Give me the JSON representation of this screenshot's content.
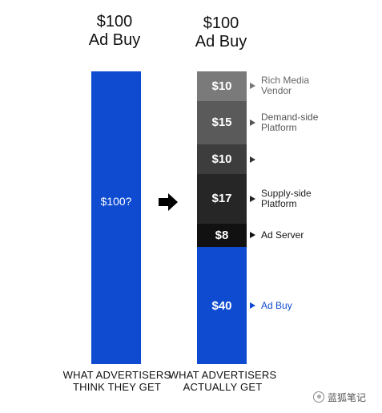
{
  "left_column": {
    "title_line1": "$100",
    "title_line2": "Ad Buy",
    "bar_value": "$100?",
    "caption_line1": "WHAT ADVERTISERS",
    "caption_line2": "THINK THEY GET",
    "bar_color": "#0e4bd1"
  },
  "arrow_icon": "right-arrow-icon",
  "right_column": {
    "title_line1": "$100",
    "title_line2": "Ad Buy",
    "caption_line1": "WHAT ADVERTISERS",
    "caption_line2": "ACTUALLY GET",
    "segments": [
      {
        "value": "$10",
        "amount": 10,
        "label": "Rich Media Vendor",
        "label_lines": [
          "Rich Media",
          "Vendor"
        ],
        "color": "#7a7a7a",
        "pointer_color": "#777777",
        "label_color": "#666666"
      },
      {
        "value": "$15",
        "amount": 15,
        "label": "Demand-side Platform",
        "label_lines": [
          "Demand-side",
          "Platform"
        ],
        "color": "#5a5a5a",
        "pointer_color": "#555555",
        "label_color": "#555555"
      },
      {
        "value": "$10",
        "amount": 10,
        "label": "",
        "label_lines": [],
        "color": "#3d3d3d",
        "pointer_color": "#333333",
        "label_color": "#333333"
      },
      {
        "value": "$17",
        "amount": 17,
        "label": "Supply-side Platform",
        "label_lines": [
          "Supply-side",
          "Platform"
        ],
        "color": "#262626",
        "pointer_color": "#222222",
        "label_color": "#222222"
      },
      {
        "value": "$8",
        "amount": 8,
        "label": "Ad Server",
        "label_lines": [
          "Ad Server"
        ],
        "color": "#111111",
        "pointer_color": "#111111",
        "label_color": "#111111"
      },
      {
        "value": "$40",
        "amount": 40,
        "label": "Ad Buy",
        "label_lines": [
          "Ad Buy"
        ],
        "color": "#0e4bd1",
        "pointer_color": "#0e4bd1",
        "label_color": "#0e4bd1"
      }
    ]
  },
  "watermark": {
    "text": "蓝狐笔记",
    "icon": "wechat-icon"
  }
}
